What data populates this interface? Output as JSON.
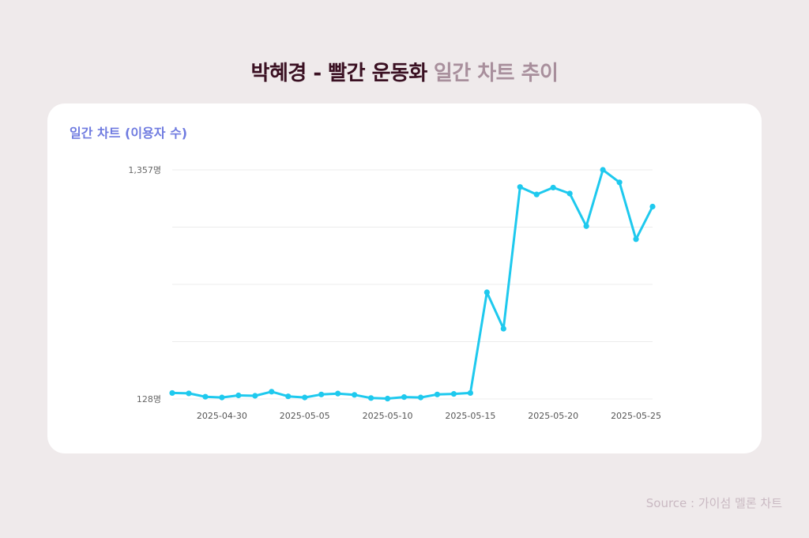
{
  "title": {
    "main": "박혜경 - 빨간 운동화",
    "sub": "일간 차트 추이"
  },
  "card_label": "일간 차트 (이용자 수)",
  "source": "Source : 가이섬 멜론 차트",
  "colors": {
    "line": "#1ec9ee",
    "title_main": "#3a1022",
    "title_sub": "#a88f9c",
    "card_label": "#6f7be0"
  },
  "chart_data": {
    "type": "line",
    "ylabel": "일간 차트 (이용자 수)",
    "y_tick_labels": [
      "1,357명",
      "128명"
    ],
    "y_ticks": [
      1357,
      128
    ],
    "ylim": [
      128,
      1357
    ],
    "grid": true,
    "x": [
      "2025-04-27",
      "2025-04-28",
      "2025-04-29",
      "2025-04-30",
      "2025-05-01",
      "2025-05-02",
      "2025-05-03",
      "2025-05-04",
      "2025-05-05",
      "2025-05-06",
      "2025-05-07",
      "2025-05-08",
      "2025-05-09",
      "2025-05-10",
      "2025-05-11",
      "2025-05-12",
      "2025-05-13",
      "2025-05-14",
      "2025-05-15",
      "2025-05-16",
      "2025-05-17",
      "2025-05-18",
      "2025-05-19",
      "2025-05-20",
      "2025-05-21",
      "2025-05-22",
      "2025-05-23",
      "2025-05-24",
      "2025-05-25",
      "2025-05-26"
    ],
    "x_tick_labels": [
      "2025-04-30",
      "2025-05-05",
      "2025-05-10",
      "2025-05-15",
      "2025-05-20",
      "2025-05-25"
    ],
    "series": [
      {
        "values": [
          160,
          158,
          140,
          136,
          147,
          145,
          167,
          142,
          136,
          152,
          157,
          150,
          133,
          130,
          138,
          136,
          152,
          155,
          160,
          700,
          505,
          1265,
          1225,
          1262,
          1230,
          1055,
          1357,
          1290,
          985,
          1160
        ]
      }
    ]
  }
}
